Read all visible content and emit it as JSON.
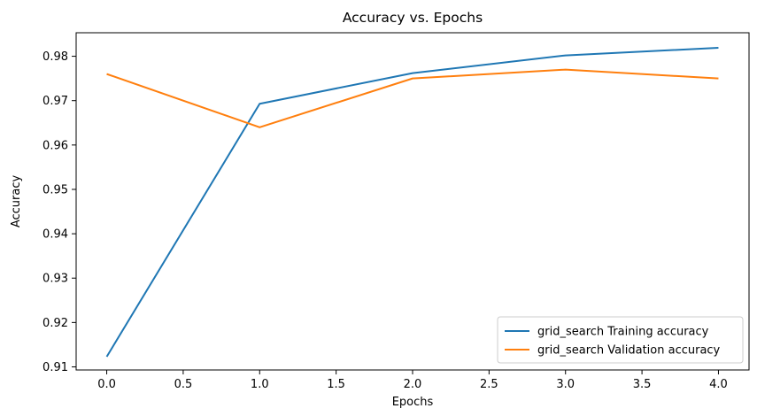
{
  "chart_data": {
    "type": "line",
    "title": "Accuracy vs. Epochs",
    "xlabel": "Epochs",
    "ylabel": "Accuracy",
    "x": [
      0,
      1,
      2,
      3,
      4
    ],
    "xlim": [
      -0.2,
      4.2
    ],
    "ylim": [
      0.9093,
      0.9853
    ],
    "xticks": [
      0.0,
      0.5,
      1.0,
      1.5,
      2.0,
      2.5,
      3.0,
      3.5,
      4.0
    ],
    "xtick_labels": [
      "0.0",
      "0.5",
      "1.0",
      "1.5",
      "2.0",
      "2.5",
      "3.0",
      "3.5",
      "4.0"
    ],
    "yticks": [
      0.91,
      0.92,
      0.93,
      0.94,
      0.95,
      0.96,
      0.97,
      0.98
    ],
    "ytick_labels": [
      "0.91",
      "0.92",
      "0.93",
      "0.94",
      "0.95",
      "0.96",
      "0.97",
      "0.98"
    ],
    "grid": false,
    "legend_position": "lower-right",
    "series": [
      {
        "name": "grid_search Training accuracy",
        "color": "#1f77b4",
        "values": [
          0.9123,
          0.9693,
          0.9762,
          0.9802,
          0.9819
        ]
      },
      {
        "name": "grid_search Validation accuracy",
        "color": "#ff7f0e",
        "values": [
          0.976,
          0.964,
          0.975,
          0.977,
          0.975
        ]
      }
    ]
  }
}
